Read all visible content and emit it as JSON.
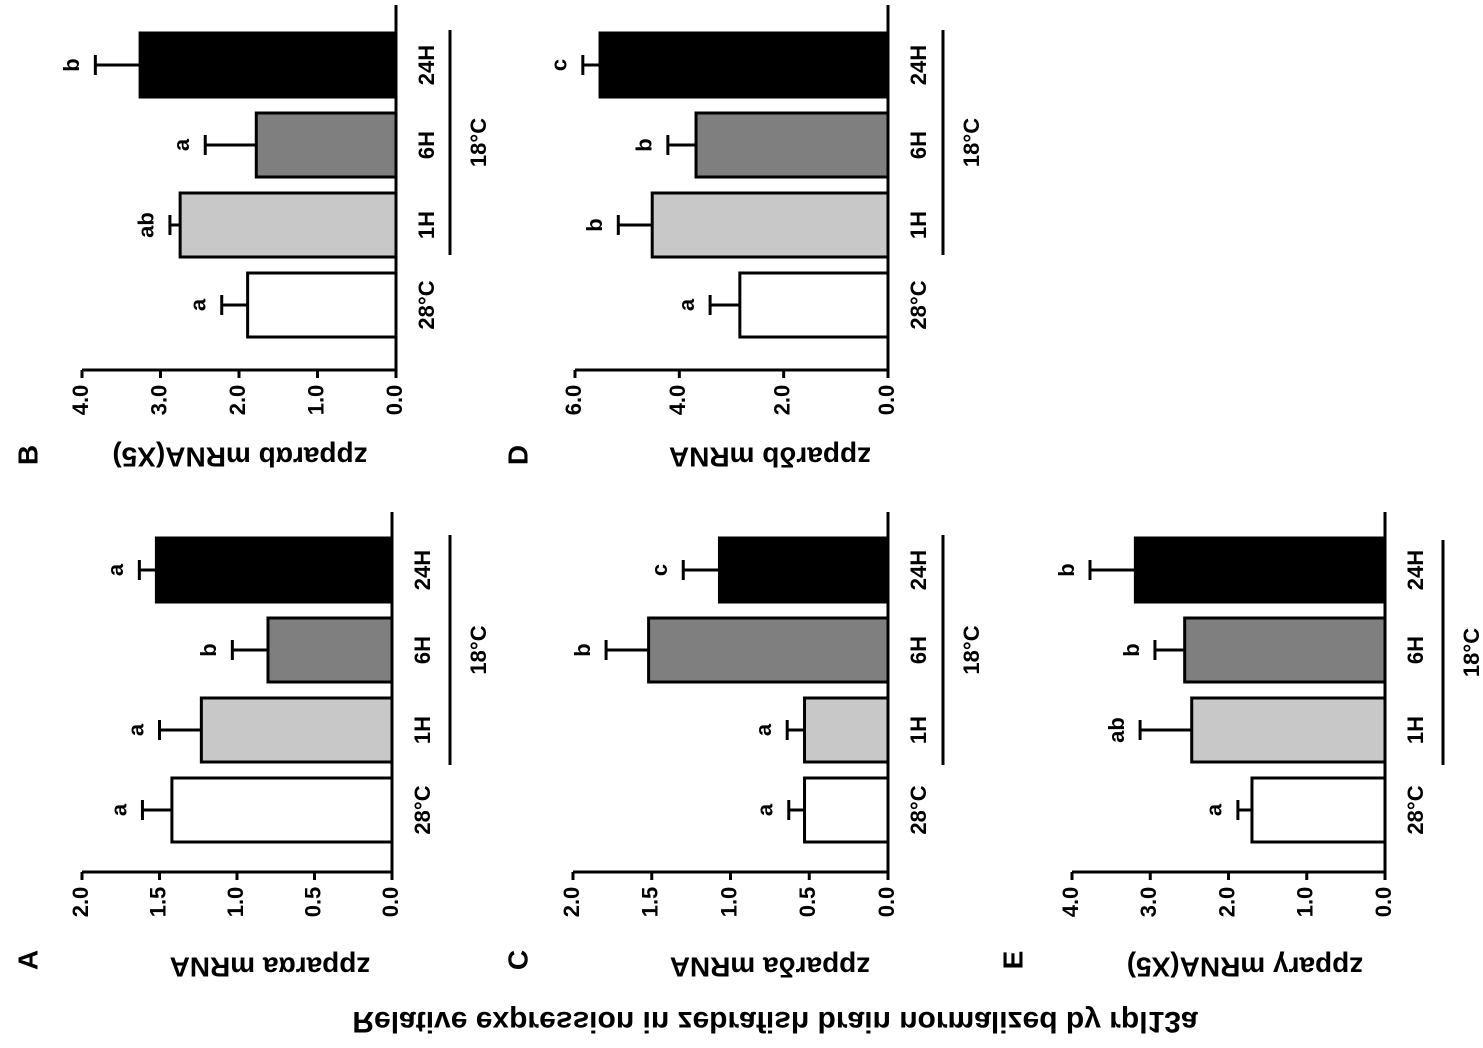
{
  "title": "Relative expression in zebrafish brain normalized by rpl13a",
  "chart_data": [
    {
      "type": "bar",
      "panel": "A",
      "ylabel": "zpparαa mRNA",
      "group_label": "18°C",
      "categories": [
        "28°C",
        "1H",
        "6H",
        "24H"
      ],
      "values": [
        1.42,
        1.23,
        0.8,
        1.52
      ],
      "errors": [
        0.19,
        0.27,
        0.23,
        0.11
      ],
      "annotations": [
        "a",
        "a",
        "b",
        "a"
      ],
      "colors": [
        "#ffffff",
        "#c8c8c8",
        "#7f7f7f",
        "#000000"
      ],
      "ylim": [
        0,
        2
      ],
      "yticks": [
        {
          "value": 0,
          "label": "0.0"
        },
        {
          "value": 0.5,
          "label": "0.5"
        },
        {
          "value": 1,
          "label": "1.0"
        },
        {
          "value": 1.5,
          "label": "1.5"
        },
        {
          "value": 2,
          "label": "2.0"
        }
      ]
    },
    {
      "type": "bar",
      "panel": "B",
      "ylabel": "zpparαb mRNA(X5)",
      "group_label": "18°C",
      "categories": [
        "28°C",
        "1H",
        "6H",
        "24H"
      ],
      "values": [
        1.89,
        2.75,
        1.78,
        3.26
      ],
      "errors": [
        0.33,
        0.13,
        0.65,
        0.57
      ],
      "annotations": [
        "a",
        "ab",
        "a",
        "b"
      ],
      "colors": [
        "#ffffff",
        "#c8c8c8",
        "#7f7f7f",
        "#000000"
      ],
      "ylim": [
        0,
        4
      ],
      "yticks": [
        {
          "value": 0,
          "label": "0.0"
        },
        {
          "value": 1,
          "label": "1.0"
        },
        {
          "value": 2,
          "label": "2.0"
        },
        {
          "value": 3,
          "label": "3.0"
        },
        {
          "value": 4,
          "label": "4.0"
        }
      ]
    },
    {
      "type": "bar",
      "panel": "C",
      "ylabel": "zpparδa mRNA",
      "group_label": "18°C",
      "categories": [
        "28°C",
        "1H",
        "6H",
        "24H"
      ],
      "values": [
        0.53,
        0.53,
        1.52,
        1.07
      ],
      "errors": [
        0.1,
        0.11,
        0.27,
        0.23
      ],
      "annotations": [
        "a",
        "a",
        "b",
        "c"
      ],
      "colors": [
        "#ffffff",
        "#c8c8c8",
        "#7f7f7f",
        "#000000"
      ],
      "ylim": [
        0,
        2
      ],
      "yticks": [
        {
          "value": 0,
          "label": "0.0"
        },
        {
          "value": 0.5,
          "label": "0.5"
        },
        {
          "value": 1,
          "label": "1.0"
        },
        {
          "value": 1.5,
          "label": "1.5"
        },
        {
          "value": 2,
          "label": "2.0"
        }
      ]
    },
    {
      "type": "bar",
      "panel": "D",
      "ylabel": "zpparδb mRNA",
      "group_label": "18°C",
      "categories": [
        "28°C",
        "1H",
        "6H",
        "24H"
      ],
      "values": [
        2.84,
        4.52,
        3.68,
        5.52
      ],
      "errors": [
        0.57,
        0.65,
        0.54,
        0.33
      ],
      "annotations": [
        "a",
        "b",
        "b",
        "c"
      ],
      "colors": [
        "#ffffff",
        "#c8c8c8",
        "#7f7f7f",
        "#000000"
      ],
      "ylim": [
        0,
        6
      ],
      "yticks": [
        {
          "value": 0,
          "label": "0.0"
        },
        {
          "value": 2,
          "label": "2.0"
        },
        {
          "value": 4,
          "label": "4.0"
        },
        {
          "value": 6,
          "label": "6.0"
        }
      ]
    },
    {
      "type": "bar",
      "panel": "E",
      "ylabel": "zpparγ mRNA(X5)",
      "group_label": "18°C",
      "categories": [
        "28°C",
        "1H",
        "6H",
        "24H"
      ],
      "values": [
        1.7,
        2.47,
        2.56,
        3.19
      ],
      "errors": [
        0.18,
        0.66,
        0.38,
        0.58
      ],
      "annotations": [
        "a",
        "ab",
        "b",
        "b"
      ],
      "colors": [
        "#ffffff",
        "#c8c8c8",
        "#7f7f7f",
        "#000000"
      ],
      "ylim": [
        0,
        4
      ],
      "yticks": [
        {
          "value": 0,
          "label": "0.0"
        },
        {
          "value": 1,
          "label": "1.0"
        },
        {
          "value": 2,
          "label": "2.0"
        },
        {
          "value": 3,
          "label": "3.0"
        },
        {
          "value": 4,
          "label": "4.0"
        }
      ]
    }
  ]
}
